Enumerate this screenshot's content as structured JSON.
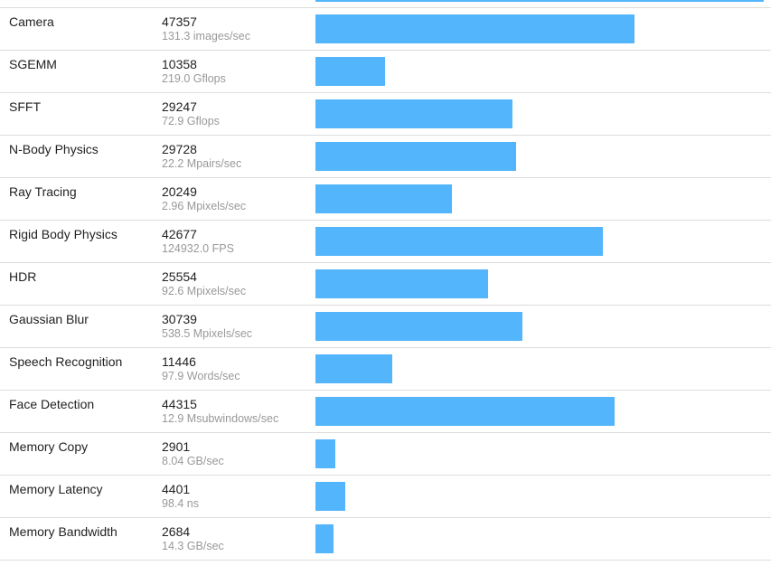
{
  "colors": {
    "bar": "#53b5fb",
    "divider": "#dcdcdc"
  },
  "scale_max": 66500,
  "rows": [
    {
      "name": "Camera",
      "score": "47357",
      "rate": "131.3 images/sec",
      "value": 47357
    },
    {
      "name": "SGEMM",
      "score": "10358",
      "rate": "219.0 Gflops",
      "value": 10358
    },
    {
      "name": "SFFT",
      "score": "29247",
      "rate": "72.9 Gflops",
      "value": 29247
    },
    {
      "name": "N-Body Physics",
      "score": "29728",
      "rate": "22.2 Mpairs/sec",
      "value": 29728
    },
    {
      "name": "Ray Tracing",
      "score": "20249",
      "rate": "2.96 Mpixels/sec",
      "value": 20249
    },
    {
      "name": "Rigid Body Physics",
      "score": "42677",
      "rate": "124932.0 FPS",
      "value": 42677
    },
    {
      "name": "HDR",
      "score": "25554",
      "rate": "92.6 Mpixels/sec",
      "value": 25554
    },
    {
      "name": "Gaussian Blur",
      "score": "30739",
      "rate": "538.5 Mpixels/sec",
      "value": 30739
    },
    {
      "name": "Speech Recognition",
      "score": "11446",
      "rate": "97.9 Words/sec",
      "value": 11446
    },
    {
      "name": "Face Detection",
      "score": "44315",
      "rate": "12.9 Msubwindows/sec",
      "value": 44315
    },
    {
      "name": "Memory Copy",
      "score": "2901",
      "rate": "8.04 GB/sec",
      "value": 2901
    },
    {
      "name": "Memory Latency",
      "score": "4401",
      "rate": "98.4 ns",
      "value": 4401
    },
    {
      "name": "Memory Bandwidth",
      "score": "2684",
      "rate": "14.3 GB/sec",
      "value": 2684
    }
  ]
}
